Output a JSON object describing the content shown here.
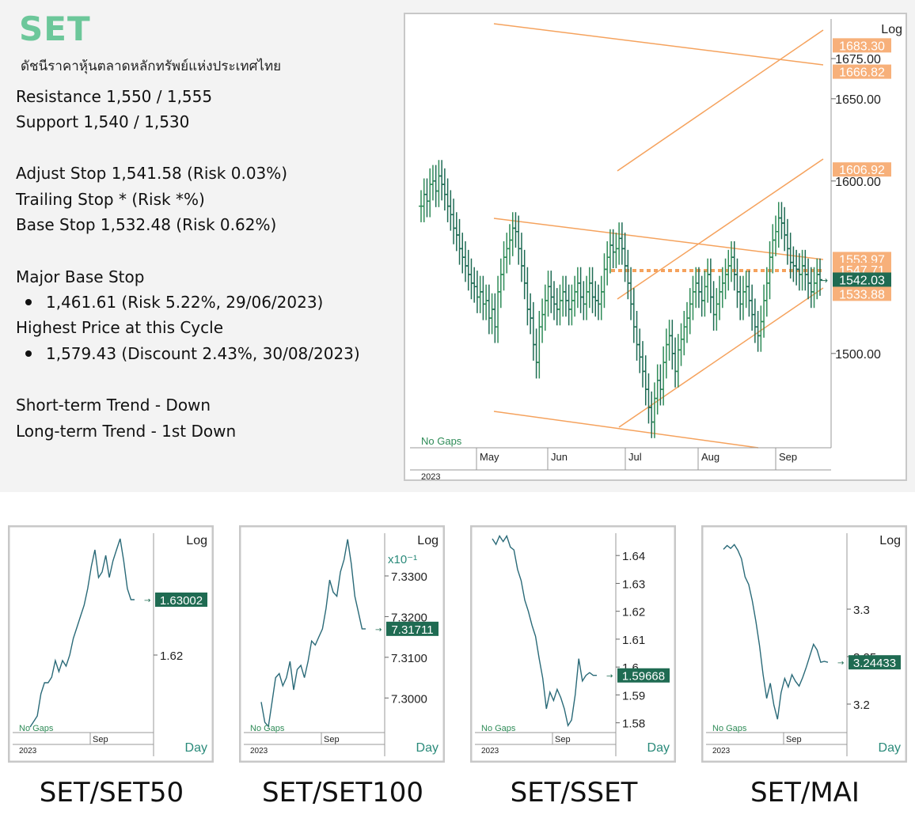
{
  "header": {
    "title": "SET",
    "subtitle": "ดัชนีราคาหุ้นตลาดหลักทรัพย์แห่งประเทศไทย"
  },
  "info": {
    "resistance": "Resistance 1,550 / 1,555",
    "support": "Support 1,540 / 1,530",
    "adjust_stop": "Adjust Stop 1,541.58 (Risk 0.03%)",
    "trailing_stop": "Trailing Stop * (Risk *%)",
    "base_stop": "Base Stop 1,532.48 (Risk 0.62%)",
    "major_base_stop_label": "Major Base Stop",
    "major_base_stop_value": "1,461.61 (Risk 5.22%, 29/06/2023)",
    "highest_price_label": "Highest Price at this Cycle",
    "highest_price_value": "1,579.43 (Discount 2.43%, 30/08/2023)",
    "short_term_trend": "Short-term Trend - Down",
    "long_term_trend": "Long-term Trend - 1st Down"
  },
  "colors": {
    "up_bar": "#2e8b57",
    "down_bar": "#1e6b54",
    "channel": "#f5a25d",
    "price_tag": "#1f6b52",
    "level_tag": "#f7b07a",
    "line": "#2a6a78"
  },
  "chart_data": [
    {
      "type": "ohlc",
      "scale": "log",
      "scale_label": "Log",
      "note": "No Gaps",
      "year_label": "2023",
      "x_labels": [
        "May",
        "Jun",
        "Jul",
        "Aug",
        "Sep"
      ],
      "y_ticks": [
        1675,
        1650,
        1600,
        1500
      ],
      "y_tick_labels": [
        "1675.00",
        "1650.00",
        "1600.00",
        "1500.00"
      ],
      "ylim": [
        1448,
        1700
      ],
      "last_price": 1542.03,
      "last_price_label": "1542.03",
      "levels": [
        {
          "value": 1683.3,
          "label": "1683.30"
        },
        {
          "value": 1666.82,
          "label": "1666.82"
        },
        {
          "value": 1606.92,
          "label": "1606.92"
        },
        {
          "value": 1553.97,
          "label": "1553.97"
        },
        {
          "value": 1547.71,
          "label": "1547.71"
        },
        {
          "value": 1533.88,
          "label": "1533.88"
        }
      ],
      "closes": [
        1585,
        1592,
        1588,
        1598,
        1600,
        1594,
        1603,
        1598,
        1592,
        1585,
        1580,
        1572,
        1568,
        1560,
        1555,
        1550,
        1545,
        1540,
        1538,
        1532,
        1535,
        1528,
        1530,
        1520,
        1525,
        1515,
        1535,
        1545,
        1555,
        1560,
        1565,
        1572,
        1570,
        1560,
        1550,
        1540,
        1525,
        1520,
        1505,
        1495,
        1515,
        1522,
        1530,
        1538,
        1532,
        1528,
        1525,
        1530,
        1535,
        1530,
        1525,
        1530,
        1535,
        1540,
        1532,
        1528,
        1535,
        1540,
        1532,
        1530,
        1528,
        1535,
        1548,
        1555,
        1562,
        1558,
        1560,
        1566,
        1560,
        1550,
        1540,
        1528,
        1515,
        1505,
        1498,
        1490,
        1480,
        1470,
        1462,
        1475,
        1485,
        1480,
        1495,
        1505,
        1510,
        1500,
        1490,
        1502,
        1508,
        1515,
        1520,
        1528,
        1535,
        1540,
        1535,
        1530,
        1538,
        1545,
        1532,
        1522,
        1528,
        1535,
        1540,
        1545,
        1550,
        1555,
        1545,
        1535,
        1528,
        1535,
        1538,
        1530,
        1522,
        1515,
        1510,
        1518,
        1530,
        1540,
        1555,
        1565,
        1570,
        1578,
        1575,
        1568,
        1560,
        1552,
        1550,
        1548,
        1545,
        1550,
        1545,
        1540,
        1535,
        1540,
        1545,
        1542
      ]
    },
    {
      "type": "line",
      "scale_label": "Log",
      "note": "No Gaps",
      "year_label": "2023",
      "x_labels": [
        "Sep"
      ],
      "y_ticks": [
        1.62
      ],
      "y_tick_labels": [
        "1.62"
      ],
      "ylim": [
        1.606,
        1.642
      ],
      "last_value_label": "1.63002",
      "values": [
        1.607,
        1.608,
        1.609,
        1.613,
        1.615,
        1.615,
        1.616,
        1.619,
        1.617,
        1.619,
        1.618,
        1.62,
        1.623,
        1.625,
        1.627,
        1.629,
        1.632,
        1.636,
        1.639,
        1.634,
        1.635,
        1.638,
        1.634,
        1.637,
        1.639,
        1.641,
        1.637,
        1.632,
        1.63,
        1.63
      ]
    },
    {
      "type": "line",
      "scale_label": "Log",
      "multiplier_label": "x10⁻¹",
      "note": "No Gaps",
      "year_label": "2023",
      "x_labels": [
        "Sep"
      ],
      "y_ticks": [
        7.33,
        7.32,
        7.31,
        7.3
      ],
      "y_tick_labels": [
        "7.3300",
        "7.3200",
        "7.3100",
        "7.3000"
      ],
      "ylim": [
        7.2915,
        7.3405
      ],
      "last_value_label": "7.31711",
      "values": [
        7.299,
        7.294,
        7.293,
        7.299,
        7.305,
        7.306,
        7.303,
        7.305,
        7.309,
        7.302,
        7.307,
        7.308,
        7.305,
        7.309,
        7.314,
        7.313,
        7.315,
        7.317,
        7.322,
        7.329,
        7.326,
        7.325,
        7.331,
        7.334,
        7.339,
        7.333,
        7.325,
        7.321,
        7.317,
        7.317
      ]
    },
    {
      "type": "line",
      "note": "No Gaps",
      "year_label": "2023",
      "x_labels": [
        "Sep"
      ],
      "y_ticks": [
        1.64,
        1.63,
        1.62,
        1.61,
        1.6,
        1.59,
        1.58
      ],
      "y_tick_labels": [
        "1.64",
        "1.63",
        "1.62",
        "1.61",
        "1.6",
        "1.59",
        "1.58"
      ],
      "ylim": [
        1.5765,
        1.648
      ],
      "last_value_label": "1.59668",
      "values": [
        1.646,
        1.644,
        1.647,
        1.645,
        1.647,
        1.643,
        1.642,
        1.635,
        1.631,
        1.624,
        1.62,
        1.615,
        1.611,
        1.603,
        1.596,
        1.585,
        1.591,
        1.588,
        1.592,
        1.589,
        1.585,
        1.579,
        1.581,
        1.59,
        1.603,
        1.595,
        1.597,
        1.598,
        1.597,
        1.597
      ]
    },
    {
      "type": "line",
      "scale_label": "Log",
      "note": "No Gaps",
      "year_label": "2023",
      "x_labels": [
        "Sep"
      ],
      "y_ticks": [
        3.3,
        3.25,
        3.2
      ],
      "y_tick_labels": [
        "3.3",
        "3.25",
        "3.2"
      ],
      "ylim": [
        3.17,
        3.38
      ],
      "last_value_label": "3.24433",
      "values": [
        3.363,
        3.367,
        3.364,
        3.368,
        3.362,
        3.353,
        3.334,
        3.326,
        3.309,
        3.287,
        3.262,
        3.231,
        3.206,
        3.222,
        3.199,
        3.184,
        3.212,
        3.227,
        3.218,
        3.231,
        3.224,
        3.219,
        3.228,
        3.239,
        3.251,
        3.263,
        3.257,
        3.244,
        3.245,
        3.244
      ]
    }
  ],
  "captions": [
    "SET/SET50",
    "SET/SET100",
    "SET/SSET",
    "SET/MAI"
  ],
  "day_label": "Day"
}
